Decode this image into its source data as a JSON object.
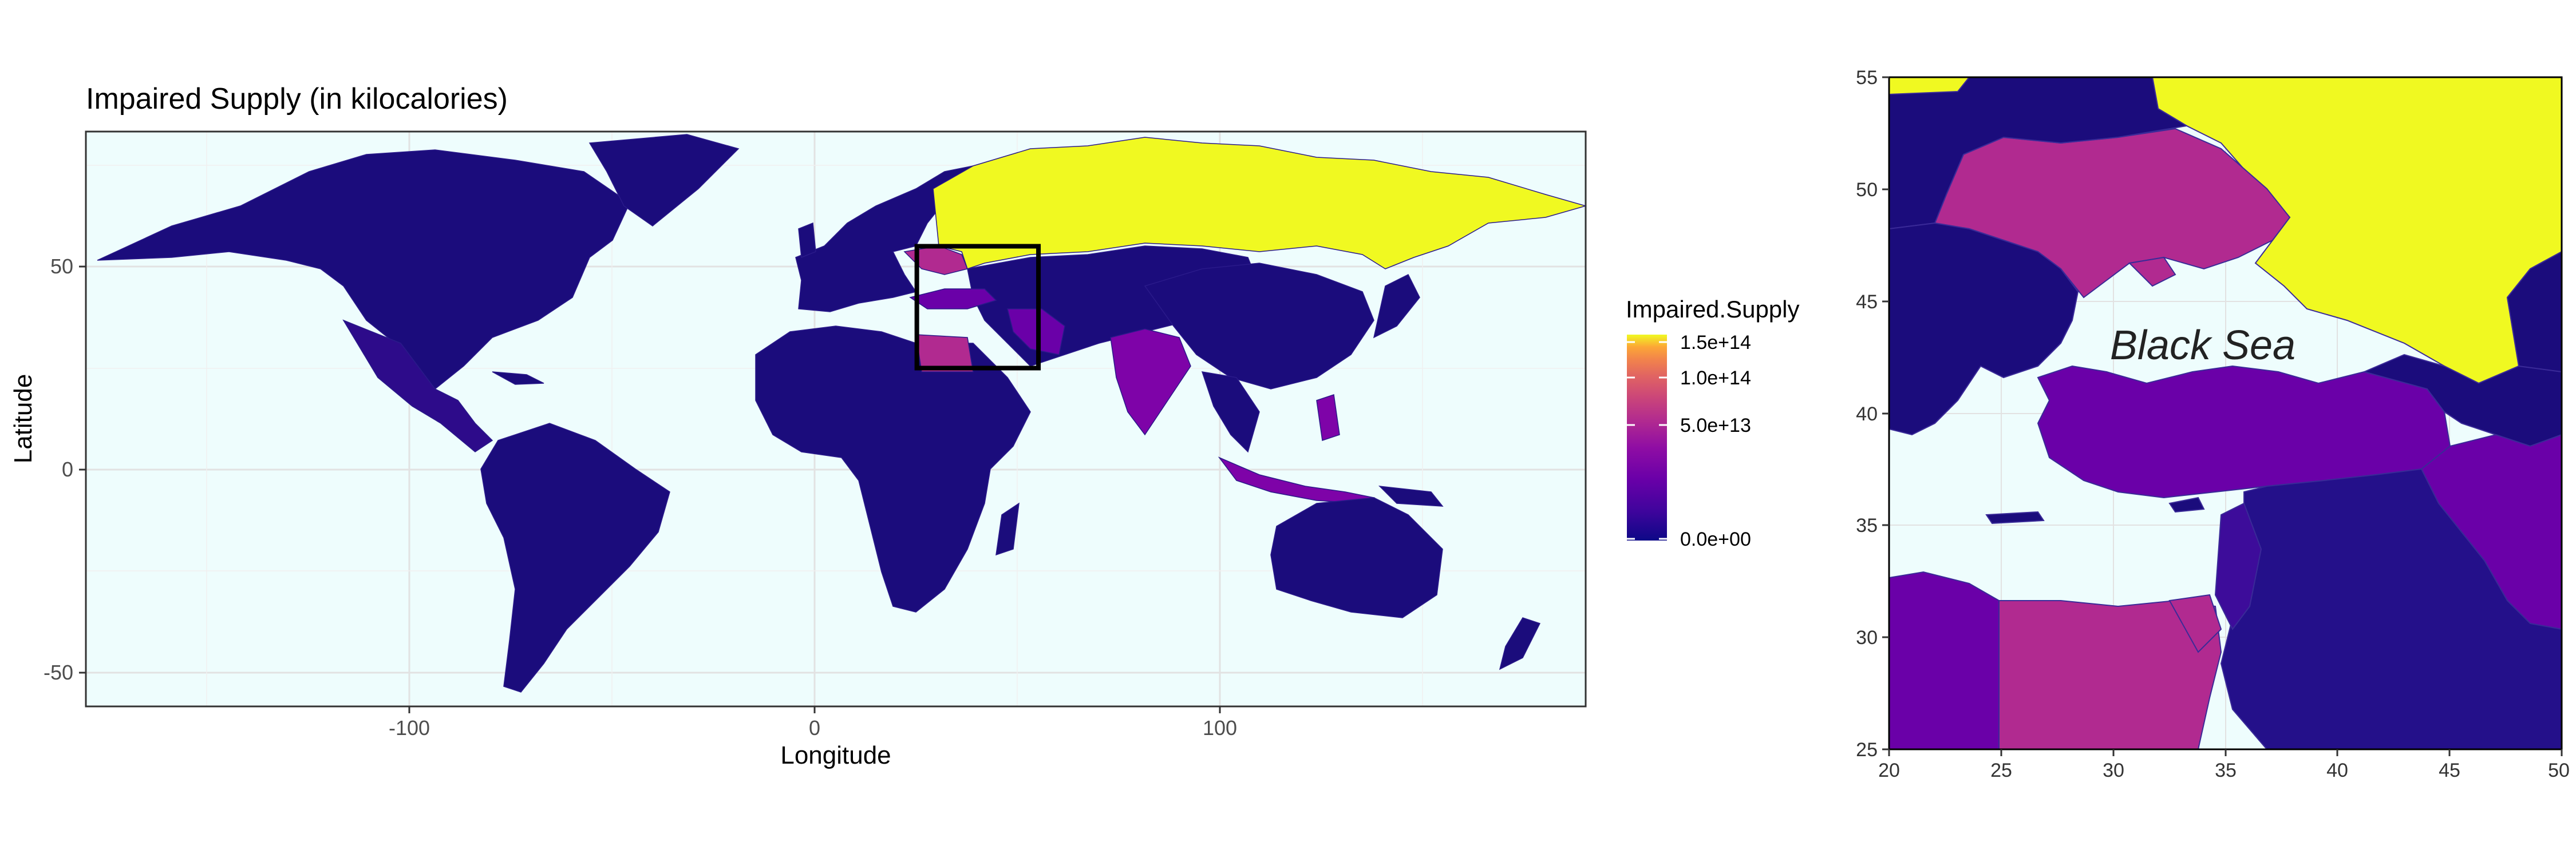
{
  "main_map": {
    "title": "Impaired Supply (in kilocalories)",
    "xlabel": "Longitude",
    "ylabel": "Latitude",
    "xticks": [
      "-100",
      "0",
      "100"
    ],
    "yticks": [
      "50",
      "0",
      "-50"
    ],
    "inset_box_extent": {
      "lon": [
        20,
        50
      ],
      "lat": [
        25,
        55
      ]
    },
    "colors": {
      "ocean": "#eefdfd",
      "base_country": "#1b0c7c",
      "russia": "#f0f921",
      "ukraine_egypt": "#b12a90",
      "turkey_iran": "#6a00a8",
      "indonesia_india": "#7e03a8"
    }
  },
  "legend": {
    "title": "Impaired.Supply",
    "labels": [
      "1.5e+14",
      "1.0e+14",
      "5.0e+13",
      "0.0e+00"
    ],
    "colormap": "plasma",
    "range": [
      0,
      150000000000000
    ]
  },
  "inset_map": {
    "xticks": [
      "20",
      "25",
      "30",
      "35",
      "40",
      "45",
      "50"
    ],
    "yticks": [
      "55",
      "50",
      "45",
      "40",
      "35",
      "30",
      "25"
    ],
    "sea_label": "Black Sea"
  }
}
